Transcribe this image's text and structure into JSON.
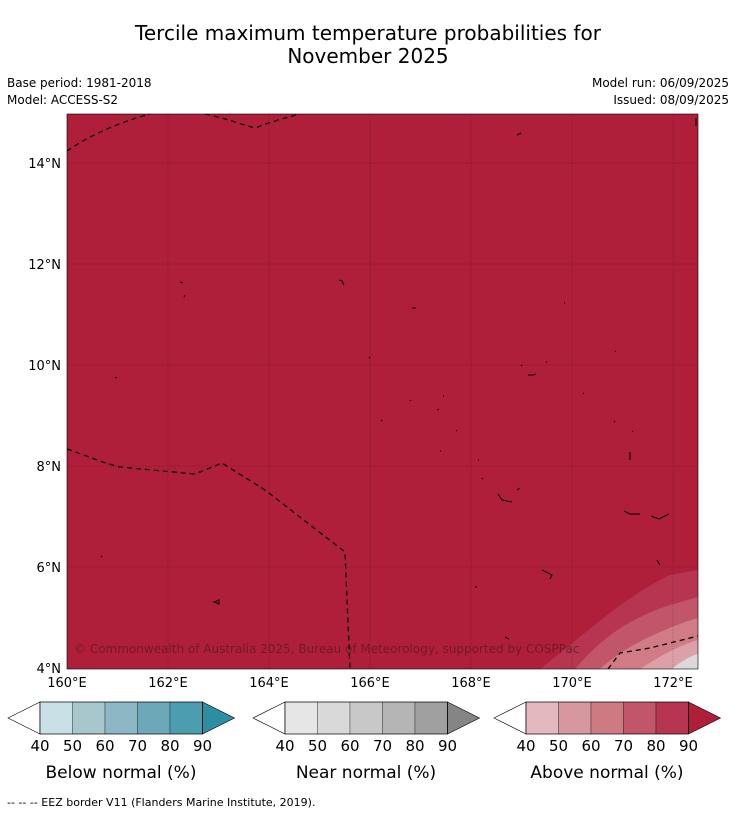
{
  "title_line1": "Tercile maximum temperature probabilities for",
  "title_line2": "November 2025",
  "base_period": "Base period: 1981-2018",
  "model": "Model: ACCESS-S2",
  "model_run": "Model run: 06/09/2025",
  "issued": "Issued: 08/09/2025",
  "copyright": "© Commonwealth of Australia 2025, Bureau of Meteorology, supported by COSPPac",
  "lat_labels": [
    "14°N",
    "12°N",
    "10°N",
    "8°N",
    "6°N",
    "4°N"
  ],
  "lon_labels": [
    "160°E",
    "162°E",
    "164°E",
    "166°E",
    "168°E",
    "170°E",
    "172°E"
  ],
  "legends": [
    {
      "title": "Below normal (%)",
      "ticks": [
        "40",
        "50",
        "60",
        "70",
        "80",
        "90"
      ],
      "colors": [
        "#ffffff",
        "#c9e0e7",
        "#a7c7cc",
        "#8bb8c4",
        "#6ca9b8",
        "#4c9db0",
        "#2d8ea3"
      ]
    },
    {
      "title": "Near normal (%)",
      "ticks": [
        "40",
        "50",
        "60",
        "70",
        "80",
        "90"
      ],
      "colors": [
        "#ffffff",
        "#e6e6e6",
        "#d9d9d9",
        "#c8c8c8",
        "#b5b5b5",
        "#a0a0a0",
        "#858585"
      ]
    },
    {
      "title": "Above normal (%)",
      "ticks": [
        "40",
        "50",
        "60",
        "70",
        "80",
        "90"
      ],
      "colors": [
        "#ffffff",
        "#e3b9bf",
        "#d6979f",
        "#cd7a83",
        "#c1566a",
        "#b83551",
        "#b01f3a"
      ]
    }
  ],
  "footer": "--  --  -- EEZ border V11 (Flanders Marine Institute, 2019).",
  "colors": {
    "above_90": "#b01f3a",
    "above_80": "#b83551",
    "above_70": "#c1566a",
    "above_60": "#d17b86",
    "above_50": "#dca0a8",
    "no_signal": "#d9d9d9"
  }
}
